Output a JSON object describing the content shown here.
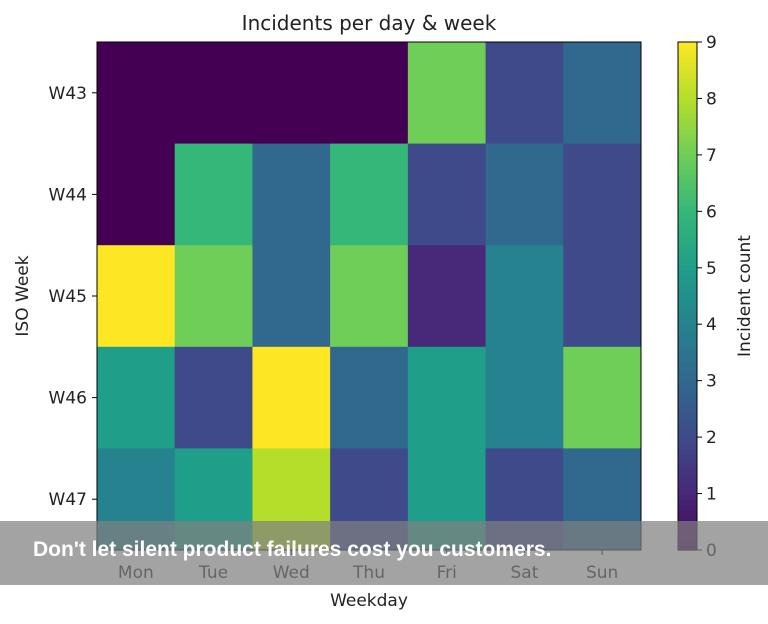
{
  "chart_data": {
    "type": "heatmap",
    "title": "Incidents per day & week",
    "xlabel": "Weekday",
    "ylabel": "ISO Week",
    "x": [
      "Mon",
      "Tue",
      "Wed",
      "Thu",
      "Fri",
      "Sat",
      "Sun"
    ],
    "y": [
      "W43",
      "W44",
      "W45",
      "W46",
      "W47"
    ],
    "values": [
      [
        0,
        0,
        0,
        0,
        7,
        2,
        3
      ],
      [
        0,
        6,
        3,
        6,
        2,
        3,
        2
      ],
      [
        9,
        7,
        3,
        7,
        1,
        4,
        2
      ],
      [
        5,
        2,
        9,
        3,
        5,
        4,
        7
      ],
      [
        4,
        5,
        8,
        2,
        5,
        2,
        3
      ]
    ],
    "colormap": "viridis",
    "colorbar": {
      "label": "Incident count",
      "range": [
        0,
        9
      ],
      "ticks": [
        0,
        1,
        2,
        3,
        4,
        5,
        6,
        7,
        8,
        9
      ]
    }
  },
  "caption": "Don't let silent product failures cost you customers."
}
